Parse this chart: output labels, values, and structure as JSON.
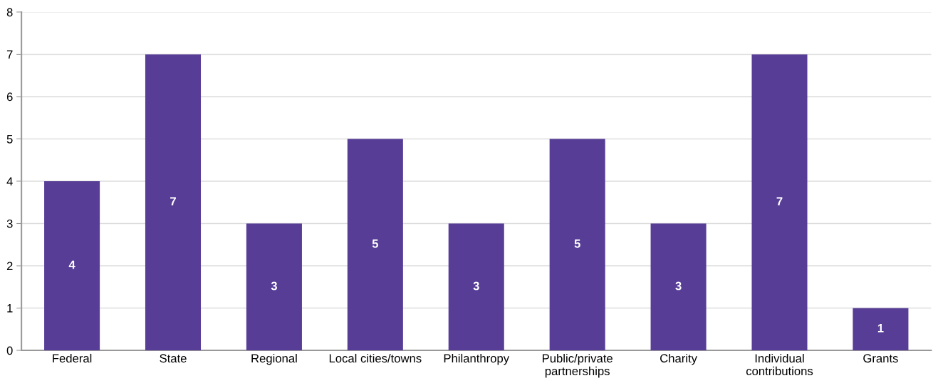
{
  "chart_data": {
    "type": "bar",
    "categories": [
      "Federal",
      "State",
      "Regional",
      "Local cities/towns",
      "Philanthropy",
      "Public/private\npartnerships",
      "Charity",
      "Individual\ncontributions",
      "Grants"
    ],
    "values": [
      4,
      7,
      3,
      5,
      3,
      5,
      3,
      7,
      1
    ],
    "color": "#573d96",
    "ylim": [
      0,
      8
    ],
    "yticks": [
      0,
      1,
      2,
      3,
      4,
      5,
      6,
      7,
      8
    ],
    "grid": "y",
    "data_labels": true,
    "legend": false
  }
}
